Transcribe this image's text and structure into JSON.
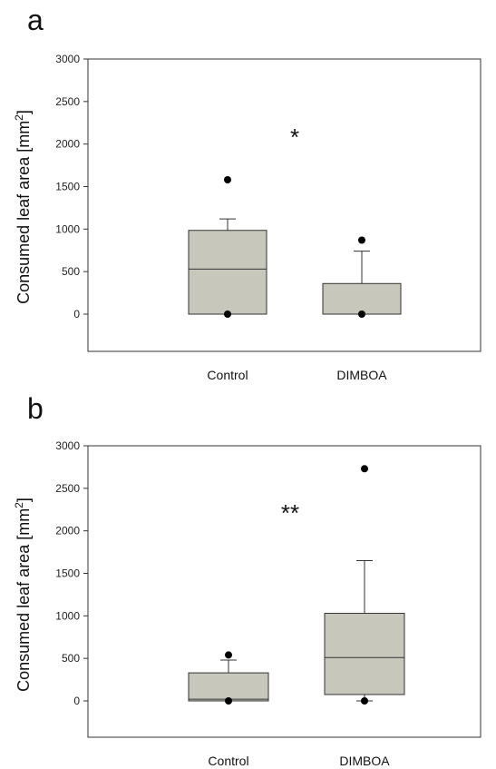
{
  "chart_data": [
    {
      "type": "box",
      "panel_label": "a",
      "ylabel": "Consumed leaf area [mm",
      "ylabel_sup": "2",
      "ylabel_close": "]",
      "ylim": [
        -450,
        3000
      ],
      "yticks": [
        0,
        500,
        1000,
        1500,
        2000,
        2500,
        3000
      ],
      "categories": [
        "Control",
        "DIMBOA"
      ],
      "boxes": [
        {
          "name": "Control",
          "q1": 0,
          "median": 530,
          "q3": 985,
          "whisker_low": 0,
          "whisker_high": 1120,
          "outliers": [
            0,
            1580
          ]
        },
        {
          "name": "DIMBOA",
          "q1": 0,
          "median": 0,
          "q3": 360,
          "whisker_low": 0,
          "whisker_high": 740,
          "outliers": [
            0,
            870
          ]
        }
      ],
      "annotation": "*",
      "box_fill": "#c7c7bb"
    },
    {
      "type": "box",
      "panel_label": "b",
      "ylabel": "Consumed leaf area [mm",
      "ylabel_sup": "2",
      "ylabel_close": "]",
      "ylim": [
        -450,
        3000
      ],
      "yticks": [
        0,
        500,
        1000,
        1500,
        2000,
        2500,
        3000
      ],
      "categories": [
        "Control",
        "DIMBOA"
      ],
      "boxes": [
        {
          "name": "Control",
          "q1": 0,
          "median": 20,
          "q3": 330,
          "whisker_low": 0,
          "whisker_high": 480,
          "outliers": [
            0,
            540
          ]
        },
        {
          "name": "DIMBOA",
          "q1": 75,
          "median": 510,
          "q3": 1030,
          "whisker_low": 0,
          "whisker_high": 1650,
          "outliers": [
            0,
            2730
          ]
        }
      ],
      "annotation": "**",
      "box_fill": "#c7c7bb"
    }
  ]
}
